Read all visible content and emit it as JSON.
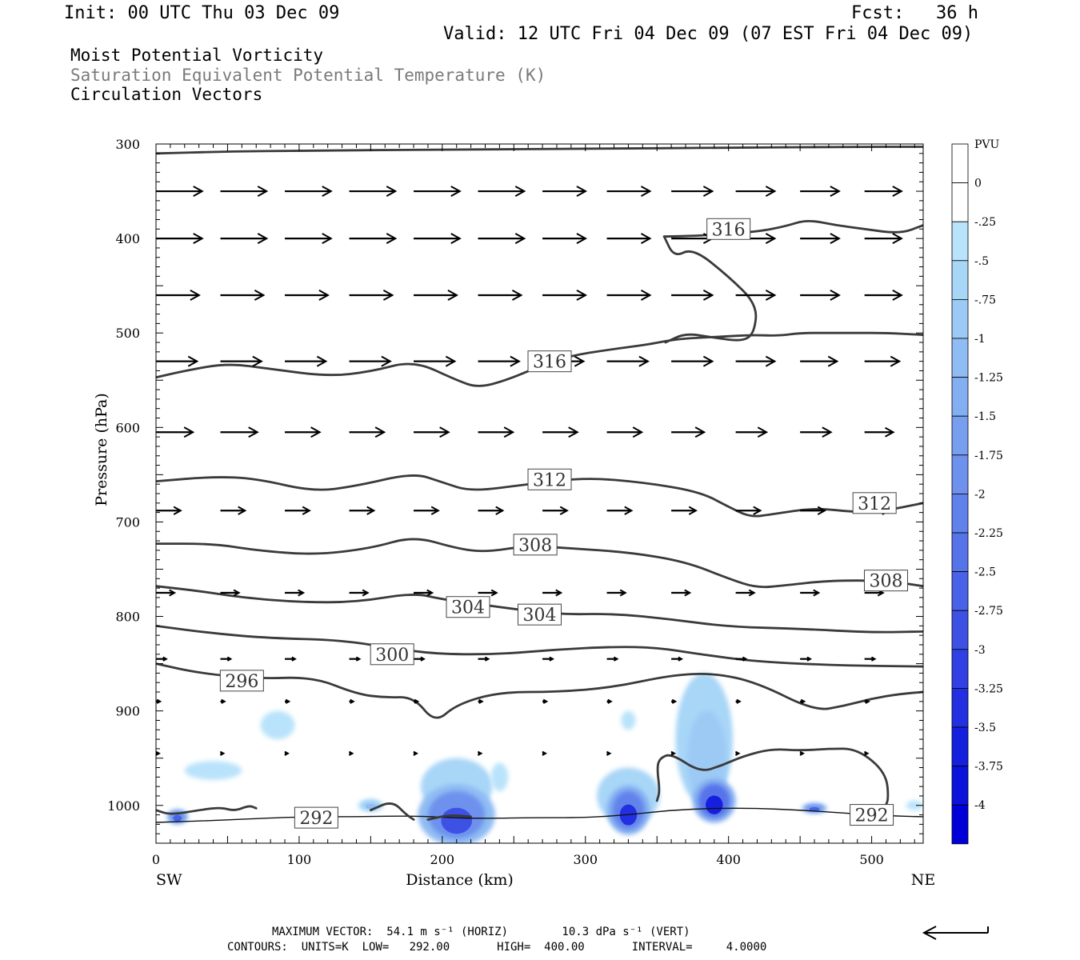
{
  "header": {
    "init": "Init: 00 UTC Thu 03 Dec 09",
    "fcst": "Fcst:   36 h",
    "valid": "Valid: 12 UTC Fri 04 Dec 09 (07 EST Fri 04 Dec 09)"
  },
  "titles": {
    "line1": "Moist Potential Vorticity",
    "line2": "Saturation Equivalent Potential Temperature (K)",
    "line3": "Circulation Vectors",
    "line2_color": "#7a7a7a"
  },
  "footer": {
    "max_vector": "MAXIMUM VECTOR:  54.1 m s⁻¹ (HORIZ)        10.3 dPa s⁻¹ (VERT)",
    "contours": "CONTOURS:  UNITS=K  LOW=   292.00       HIGH=  400.00       INTERVAL=     4.0000"
  },
  "chart_data": {
    "type": "cross-section",
    "xlabel": "Distance (km)",
    "ylabel": "Pressure (hPa)",
    "x_ticks": [
      "0",
      "100",
      "200",
      "300",
      "400",
      "500"
    ],
    "y_ticks": [
      "300",
      "400",
      "500",
      "600",
      "700",
      "800",
      "900",
      "1000"
    ],
    "x_end_labels": {
      "left": "SW",
      "right": "NE"
    },
    "xlim": [
      0,
      536
    ],
    "ylim": [
      1040,
      300
    ],
    "colorbar": {
      "unit_label": "PVU",
      "tick_labels": [
        "0",
        "-.25",
        "-.5",
        "-.75",
        "-1",
        "-1.25",
        "-1.5",
        "-1.75",
        "-2",
        "-2.25",
        "-2.5",
        "-2.75",
        "-3",
        "-3.25",
        "-3.5",
        "-3.75",
        "-4"
      ],
      "fill_colors": [
        "#ffffff",
        "#ffffff",
        "#b9e3fb",
        "#a8d6f7",
        "#9ccaf5",
        "#8fbcf3",
        "#83aef1",
        "#789fef",
        "#6d91ed",
        "#6282eb",
        "#5673e9",
        "#4a62e7",
        "#3d51e5",
        "#3040e3",
        "#2230e1",
        "#1520df",
        "#0a12dc",
        "#0000d8"
      ]
    },
    "contour_labels": [
      "316",
      "316",
      "312",
      "312",
      "308",
      "308",
      "304",
      "304",
      "300",
      "296",
      "292",
      "292"
    ],
    "isentropes": [
      {
        "pts": [
          [
            0,
            310
          ],
          [
            50,
            308
          ],
          [
            100,
            307
          ],
          [
            200,
            306
          ],
          [
            300,
            305
          ],
          [
            400,
            304
          ],
          [
            480,
            303
          ],
          [
            536,
            303
          ]
        ]
      },
      {
        "pts": [
          [
            0,
            547
          ],
          [
            20,
            540
          ],
          [
            50,
            532
          ],
          [
            80,
            538
          ],
          [
            120,
            546
          ],
          [
            150,
            541
          ],
          [
            180,
            529
          ],
          [
            210,
            550
          ],
          [
            225,
            558
          ],
          [
            245,
            550
          ],
          [
            270,
            534
          ],
          [
            290,
            524
          ],
          [
            315,
            518
          ],
          [
            345,
            512
          ],
          [
            365,
            506
          ],
          [
            395,
            504
          ],
          [
            415,
            502
          ],
          [
            435,
            503
          ],
          [
            450,
            500
          ],
          [
            470,
            500
          ],
          [
            490,
            500
          ],
          [
            510,
            500
          ],
          [
            536,
            502
          ]
        ]
      },
      {
        "pts": [
          [
            355,
            398
          ],
          [
            362,
            420
          ],
          [
            375,
            410
          ],
          [
            400,
            440
          ],
          [
            420,
            470
          ],
          [
            418,
            500
          ],
          [
            410,
            509
          ],
          [
            390,
            505
          ],
          [
            370,
            500
          ],
          [
            356,
            510
          ]
        ]
      },
      {
        "pts": [
          [
            355,
            398
          ],
          [
            380,
            397
          ],
          [
            420,
            393
          ],
          [
            440,
            387
          ],
          [
            455,
            380
          ],
          [
            475,
            386
          ],
          [
            495,
            390
          ],
          [
            520,
            395
          ],
          [
            536,
            386
          ]
        ]
      },
      {
        "pts": [
          [
            0,
            657
          ],
          [
            40,
            652
          ],
          [
            70,
            654
          ],
          [
            110,
            668
          ],
          [
            140,
            662
          ],
          [
            180,
            648
          ],
          [
            200,
            658
          ],
          [
            220,
            668
          ],
          [
            260,
            660
          ],
          [
            300,
            653
          ],
          [
            340,
            658
          ],
          [
            380,
            668
          ],
          [
            400,
            684
          ],
          [
            415,
            695
          ],
          [
            430,
            692
          ],
          [
            460,
            685
          ],
          [
            490,
            690
          ],
          [
            510,
            688
          ],
          [
            536,
            680
          ]
        ]
      },
      {
        "pts": [
          [
            0,
            723
          ],
          [
            40,
            723
          ],
          [
            70,
            730
          ],
          [
            110,
            735
          ],
          [
            150,
            728
          ],
          [
            180,
            715
          ],
          [
            210,
            728
          ],
          [
            230,
            732
          ],
          [
            260,
            725
          ],
          [
            290,
            728
          ],
          [
            330,
            732
          ],
          [
            370,
            742
          ],
          [
            400,
            760
          ],
          [
            420,
            770
          ],
          [
            440,
            767
          ],
          [
            470,
            762
          ],
          [
            510,
            762
          ],
          [
            536,
            768
          ]
        ]
      },
      {
        "pts": [
          [
            0,
            768
          ],
          [
            30,
            773
          ],
          [
            60,
            780
          ],
          [
            100,
            785
          ],
          [
            140,
            785
          ],
          [
            180,
            775
          ],
          [
            200,
            782
          ],
          [
            240,
            790
          ],
          [
            280,
            798
          ],
          [
            320,
            797
          ],
          [
            360,
            803
          ],
          [
            400,
            811
          ],
          [
            450,
            813
          ],
          [
            500,
            817
          ],
          [
            536,
            816
          ]
        ]
      },
      {
        "pts": [
          [
            0,
            810
          ],
          [
            40,
            818
          ],
          [
            80,
            823
          ],
          [
            130,
            825
          ],
          [
            170,
            835
          ],
          [
            200,
            840
          ],
          [
            240,
            840
          ],
          [
            280,
            835
          ],
          [
            320,
            832
          ],
          [
            350,
            833
          ],
          [
            380,
            840
          ],
          [
            420,
            848
          ],
          [
            480,
            852
          ],
          [
            536,
            853
          ]
        ]
      },
      {
        "pts": [
          [
            0,
            850
          ],
          [
            30,
            860
          ],
          [
            70,
            866
          ],
          [
            110,
            864
          ],
          [
            140,
            882
          ],
          [
            160,
            886
          ],
          [
            180,
            885
          ],
          [
            195,
            913
          ],
          [
            210,
            893
          ],
          [
            240,
            880
          ],
          [
            280,
            880
          ],
          [
            320,
            875
          ],
          [
            360,
            862
          ],
          [
            390,
            860
          ],
          [
            420,
            870
          ],
          [
            460,
            900
          ],
          [
            480,
            895
          ],
          [
            500,
            887
          ],
          [
            520,
            882
          ],
          [
            536,
            880
          ]
        ]
      },
      {
        "pts": [
          [
            0,
            1018
          ],
          [
            40,
            1016
          ],
          [
            100,
            1012
          ],
          [
            140,
            1012
          ],
          [
            180,
            1011
          ],
          [
            220,
            1014
          ],
          [
            260,
            1013
          ],
          [
            300,
            1013
          ],
          [
            330,
            1010
          ],
          [
            360,
            1005
          ],
          [
            390,
            1003
          ],
          [
            420,
            1003
          ],
          [
            450,
            1005
          ],
          [
            480,
            1008
          ],
          [
            510,
            1011
          ],
          [
            536,
            1012
          ]
        ]
      },
      {
        "pts": [
          [
            350,
            995
          ],
          [
            352,
            985
          ],
          [
            350,
            960
          ],
          [
            352,
            950
          ],
          [
            360,
            945
          ],
          [
            380,
            965
          ],
          [
            395,
            958
          ],
          [
            410,
            948
          ],
          [
            430,
            940
          ],
          [
            450,
            942
          ],
          [
            470,
            940
          ],
          [
            490,
            940
          ],
          [
            510,
            965
          ],
          [
            512,
            995
          ],
          [
            508,
            1003
          ]
        ]
      },
      {
        "pts": [
          [
            0,
            1005
          ],
          [
            10,
            1010
          ],
          [
            30,
            1005
          ],
          [
            45,
            1002
          ],
          [
            55,
            1006
          ],
          [
            65,
            1000
          ],
          [
            70,
            1003
          ]
        ]
      },
      {
        "pts": [
          [
            150,
            1005
          ],
          [
            165,
            995
          ],
          [
            175,
            1010
          ],
          [
            180,
            1015
          ]
        ]
      },
      {
        "pts": [
          [
            190,
            1015
          ],
          [
            205,
            1010
          ],
          [
            220,
            1012
          ]
        ]
      }
    ],
    "pv_cores": [
      {
        "x": 210,
        "p": 1010,
        "rx": 18,
        "rp": 25,
        "value": -2.75
      },
      {
        "x": 330,
        "p": 1005,
        "rx": 10,
        "rp": 20,
        "value": -3.25
      },
      {
        "x": 390,
        "p": 995,
        "rx": 10,
        "rp": 18,
        "value": -3.5
      },
      {
        "x": 15,
        "p": 1012,
        "rx": 5,
        "rp": 6,
        "value": -2.5
      },
      {
        "x": 460,
        "p": 1003,
        "rx": 6,
        "rp": 4,
        "value": -2.5
      },
      {
        "x": 150,
        "p": 1000,
        "rx": 6,
        "rp": 5,
        "value": -1.0
      }
    ],
    "pv_shallow": [
      {
        "x": 210,
        "p": 980,
        "rx": 25,
        "rp": 30,
        "value": -0.5
      },
      {
        "x": 330,
        "p": 990,
        "rx": 22,
        "rp": 30,
        "value": -0.5
      },
      {
        "x": 383,
        "p": 930,
        "rx": 20,
        "rp": 70,
        "value": -0.5
      },
      {
        "x": 385,
        "p": 950,
        "rx": 14,
        "rp": 50,
        "value": -0.75
      },
      {
        "x": 85,
        "p": 915,
        "rx": 12,
        "rp": 15,
        "value": -0.25
      },
      {
        "x": 40,
        "p": 963,
        "rx": 20,
        "rp": 10,
        "value": -0.25
      },
      {
        "x": 240,
        "p": 970,
        "rx": 6,
        "rp": 15,
        "value": -0.25
      },
      {
        "x": 330,
        "p": 910,
        "rx": 5,
        "rp": 10,
        "value": -0.25
      },
      {
        "x": 530,
        "p": 1000,
        "rx": 6,
        "rp": 5,
        "value": -0.25
      }
    ],
    "vector_rows": [
      {
        "p": 350,
        "u": [
          45,
          45,
          45,
          45,
          45,
          45,
          42,
          42,
          40,
          38,
          38,
          36
        ],
        "w": [
          0,
          0,
          0,
          0,
          0,
          0,
          0,
          0,
          0,
          0,
          0,
          0
        ]
      },
      {
        "p": 400,
        "u": [
          45,
          45,
          45,
          45,
          45,
          45,
          42,
          42,
          40,
          38,
          38,
          36
        ],
        "w": [
          0,
          0,
          0,
          0,
          0,
          0,
          0,
          0,
          0,
          0,
          0,
          0
        ]
      },
      {
        "p": 460,
        "u": [
          42,
          42,
          42,
          42,
          42,
          42,
          42,
          42,
          40,
          38,
          38,
          36
        ],
        "w": [
          0,
          0,
          0,
          0,
          0,
          0,
          0,
          0,
          0,
          0,
          0,
          0
        ]
      },
      {
        "p": 530,
        "u": [
          40,
          40,
          40,
          40,
          40,
          40,
          40,
          40,
          40,
          38,
          36,
          34
        ],
        "w": [
          0,
          0,
          0,
          0,
          0,
          0,
          0,
          0,
          0,
          0,
          0,
          0
        ]
      },
      {
        "p": 605,
        "u": [
          36,
          36,
          34,
          34,
          34,
          34,
          34,
          34,
          32,
          30,
          30,
          28
        ],
        "w": [
          0,
          0,
          0,
          0,
          0,
          0,
          0,
          0,
          0,
          0,
          0,
          0
        ]
      },
      {
        "p": 688,
        "u": [
          24,
          24,
          24,
          24,
          24,
          24,
          24,
          24,
          24,
          24,
          24,
          24
        ],
        "w": [
          0,
          0,
          0,
          0,
          0,
          0,
          0,
          0,
          0,
          0,
          0,
          0
        ]
      },
      {
        "p": 775,
        "u": [
          18,
          18,
          18,
          18,
          18,
          18,
          18,
          18,
          18,
          18,
          18,
          18
        ],
        "w": [
          0,
          0,
          0,
          0,
          0,
          0,
          0,
          0,
          0,
          0,
          0,
          0
        ]
      },
      {
        "p": 845,
        "u": [
          10,
          10,
          10,
          10,
          10,
          10,
          10,
          10,
          10,
          10,
          10,
          10
        ],
        "w": [
          0,
          0,
          0,
          0,
          0,
          0,
          0,
          0,
          0,
          0,
          0,
          0
        ]
      },
      {
        "p": 890,
        "u": [
          4,
          4,
          4,
          4,
          4,
          4,
          4,
          4,
          4,
          4,
          4,
          4
        ],
        "w": [
          0,
          0,
          0,
          0,
          0,
          0,
          0,
          0,
          0,
          0,
          0,
          0
        ]
      },
      {
        "p": 945,
        "u": [
          3,
          3,
          3,
          3,
          3,
          3,
          3,
          3,
          3,
          3,
          3,
          3
        ],
        "w": [
          0,
          0,
          0,
          0,
          0,
          0,
          0,
          0,
          0,
          0,
          0,
          0
        ]
      }
    ]
  }
}
